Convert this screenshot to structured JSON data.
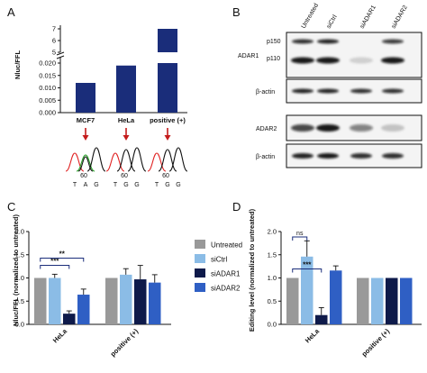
{
  "panels": {
    "a": "A",
    "b": "B",
    "c": "C",
    "d": "D"
  },
  "colors": {
    "Untreated": "#999999",
    "siCtrl": "#8bbce6",
    "siADAR1": "#0e1a4a",
    "siADAR2": "#2f5fc4",
    "panelA_bar": "#1a2d7a",
    "trace_red": "#e02020",
    "trace_green": "#28a028",
    "trace_black": "#111111",
    "arrow": "#c41c1c"
  },
  "blot": {
    "lanes": [
      "Untreated",
      "siCtrl",
      "siADAR1",
      "siADAR2"
    ],
    "labels": {
      "adar1": "ADAR1",
      "p150": "p150",
      "p110": "p110",
      "actin1": "β-actin",
      "adar2": "ADAR2",
      "actin2": "β-actin"
    }
  },
  "chromatograms": [
    {
      "position": "60",
      "bases": [
        "T",
        "A",
        "G"
      ],
      "base_colors": [
        "#e02020",
        "#28a028",
        "#111111"
      ]
    },
    {
      "position": "60",
      "bases": [
        "T",
        "G",
        "G"
      ],
      "base_colors": [
        "#e02020",
        "#111111",
        "#111111"
      ]
    },
    {
      "position": "60",
      "bases": [
        "T",
        "G",
        "G"
      ],
      "base_colors": [
        "#e02020",
        "#111111",
        "#111111"
      ]
    }
  ],
  "chart_data": [
    {
      "panel": "A",
      "type": "bar",
      "ylabel": "Nluc/FFL",
      "categories": [
        "MCF7",
        "HeLa",
        "positive (+)"
      ],
      "values": [
        0.012,
        0.019,
        7.0
      ],
      "axis_break": true,
      "lower_range": [
        0,
        0.02
      ],
      "upper_range": [
        5,
        7
      ],
      "lower_ticks": [
        "0.000",
        "0.005",
        "0.010",
        "0.015",
        "0.020"
      ],
      "upper_ticks": [
        "5",
        "6",
        "7"
      ]
    },
    {
      "panel": "C",
      "type": "bar",
      "ylabel": "Nluc/FFL (normalized to untreated)",
      "ylim": [
        0,
        2.0
      ],
      "yticks": [
        "0.0",
        "0.5",
        "1.0",
        "1.5",
        "2.0"
      ],
      "categories": [
        "HeLa",
        "positive (+)"
      ],
      "series": [
        {
          "name": "Untreated",
          "values": [
            1.0,
            1.0
          ],
          "errors": [
            0,
            0
          ]
        },
        {
          "name": "siCtrl",
          "values": [
            1.0,
            1.07
          ],
          "errors": [
            0.08,
            0.13
          ]
        },
        {
          "name": "siADAR1",
          "values": [
            0.23,
            0.97
          ],
          "errors": [
            0.06,
            0.3
          ]
        },
        {
          "name": "siADAR2",
          "values": [
            0.64,
            0.9
          ],
          "errors": [
            0.12,
            0.17
          ]
        }
      ],
      "significance": [
        {
          "from": "Untreated",
          "to": "siADAR1",
          "label": "***"
        },
        {
          "from": "Untreated",
          "to": "siADAR2",
          "label": "**"
        }
      ]
    },
    {
      "panel": "D",
      "type": "bar",
      "ylabel": "Editing level (normalized to untreated)",
      "ylim": [
        0,
        2.0
      ],
      "yticks": [
        "0.0",
        "0.5",
        "1.0",
        "1.5",
        "2.0"
      ],
      "categories": [
        "HeLa",
        "positive (+)"
      ],
      "series": [
        {
          "name": "Untreated",
          "values": [
            1.0,
            1.0
          ],
          "errors": [
            0,
            0
          ]
        },
        {
          "name": "siCtrl",
          "values": [
            1.46,
            1.0
          ],
          "errors": [
            0.34,
            0
          ]
        },
        {
          "name": "siADAR1",
          "values": [
            0.2,
            1.0
          ],
          "errors": [
            0.16,
            0
          ]
        },
        {
          "name": "siADAR2",
          "values": [
            1.16,
            1.0
          ],
          "errors": [
            0.1,
            0
          ]
        }
      ],
      "significance": [
        {
          "from": "Untreated",
          "to": "siADAR1",
          "label": "***"
        },
        {
          "from": "Untreated",
          "to": "siCtrl",
          "label": "ns"
        }
      ]
    }
  ],
  "legend": {
    "items": [
      "Untreated",
      "siCtrl",
      "siADAR1",
      "siADAR2"
    ]
  }
}
